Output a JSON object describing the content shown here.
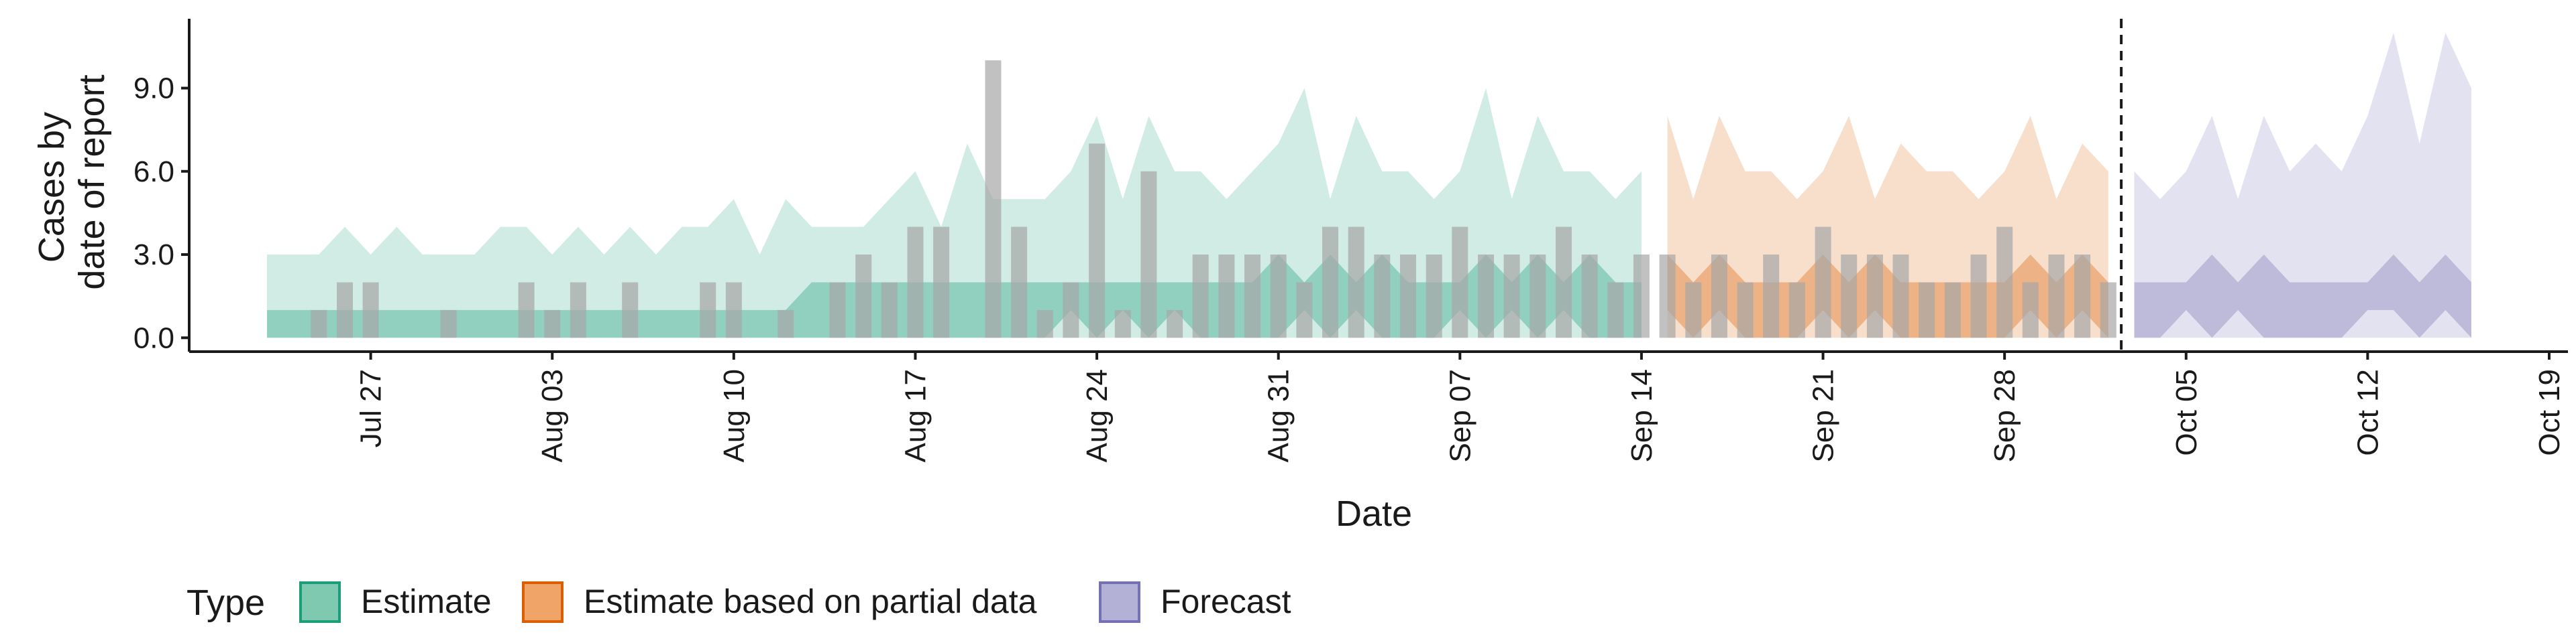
{
  "chart_data": {
    "type": "bar",
    "title": "",
    "xlabel": "Date",
    "ylabel_lines": [
      "Cases by",
      "date of report"
    ],
    "ylim": [
      -0.5,
      11.5
    ],
    "y_ticks": [
      0.0,
      3.0,
      6.0,
      9.0
    ],
    "y_tick_labels": [
      "0.0",
      "3.0",
      "6.0",
      "9.0"
    ],
    "x_start": "2020-07-20",
    "x_end": "2020-10-19",
    "x_tick_labels": [
      "Jul 27",
      "Aug 03",
      "Aug 10",
      "Aug 17",
      "Aug 24",
      "Aug 31",
      "Sep 07",
      "Sep 14",
      "Sep 21",
      "Sep 28",
      "Oct 05",
      "Oct 12",
      "Oct 19"
    ],
    "x_tick_dates": [
      "2020-07-27",
      "2020-08-03",
      "2020-08-10",
      "2020-08-17",
      "2020-08-24",
      "2020-08-31",
      "2020-09-07",
      "2020-09-14",
      "2020-09-21",
      "2020-09-28",
      "2020-10-05",
      "2020-10-12",
      "2020-10-19"
    ],
    "forecast_date": "2020-10-02",
    "legend_position": "bottom",
    "legend": {
      "title": "Type",
      "items": [
        {
          "label": "Estimate",
          "fill": "#7fc9b0",
          "border": "#1b9e77"
        },
        {
          "label": "Estimate based on partial data",
          "fill": "#f0a468",
          "border": "#d95f02"
        },
        {
          "label": "Forecast",
          "fill": "#b3b1d6",
          "border": "#7570b3"
        }
      ]
    },
    "bar_color": "#a6a6a6",
    "reported_cases": {
      "dates": [
        "2020-07-25",
        "2020-07-26",
        "2020-07-27",
        "2020-07-28",
        "2020-07-29",
        "2020-07-30",
        "2020-07-31",
        "2020-08-01",
        "2020-08-02",
        "2020-08-03",
        "2020-08-04",
        "2020-08-05",
        "2020-08-06",
        "2020-08-07",
        "2020-08-08",
        "2020-08-09",
        "2020-08-10",
        "2020-08-11",
        "2020-08-12",
        "2020-08-13",
        "2020-08-14",
        "2020-08-15",
        "2020-08-16",
        "2020-08-17",
        "2020-08-18",
        "2020-08-19",
        "2020-08-20",
        "2020-08-21",
        "2020-08-22",
        "2020-08-23",
        "2020-08-24",
        "2020-08-25",
        "2020-08-26",
        "2020-08-27",
        "2020-08-28",
        "2020-08-29",
        "2020-08-30",
        "2020-08-31",
        "2020-09-01",
        "2020-09-02",
        "2020-09-03",
        "2020-09-04",
        "2020-09-05",
        "2020-09-06",
        "2020-09-07",
        "2020-09-08",
        "2020-09-09",
        "2020-09-10",
        "2020-09-11",
        "2020-09-12",
        "2020-09-13",
        "2020-09-14",
        "2020-09-15",
        "2020-09-16",
        "2020-09-17",
        "2020-09-18",
        "2020-09-19",
        "2020-09-20",
        "2020-09-21",
        "2020-09-22",
        "2020-09-23",
        "2020-09-24",
        "2020-09-25",
        "2020-09-26",
        "2020-09-27",
        "2020-09-28",
        "2020-09-29",
        "2020-09-30",
        "2020-10-01",
        "2020-10-02"
      ],
      "values": [
        1,
        2,
        2,
        0,
        0,
        1,
        0,
        0,
        2,
        1,
        2,
        0,
        2,
        0,
        0,
        2,
        2,
        0,
        1,
        0,
        2,
        3,
        2,
        4,
        4,
        0,
        10,
        4,
        1,
        2,
        7,
        1,
        6,
        1,
        3,
        3,
        3,
        3,
        2,
        4,
        4,
        3,
        3,
        3,
        4,
        3,
        3,
        3,
        4,
        3,
        2,
        3,
        3,
        2,
        3,
        2,
        3,
        2,
        4,
        3,
        3,
        3,
        2,
        2,
        3,
        4,
        2,
        3,
        3,
        2
      ]
    },
    "series": [
      {
        "name": "Estimate",
        "color": "#1b9e77",
        "dates": [
          "2020-07-23",
          "2020-07-24",
          "2020-07-25",
          "2020-07-26",
          "2020-07-27",
          "2020-07-28",
          "2020-07-29",
          "2020-07-30",
          "2020-07-31",
          "2020-08-01",
          "2020-08-02",
          "2020-08-03",
          "2020-08-04",
          "2020-08-05",
          "2020-08-06",
          "2020-08-07",
          "2020-08-08",
          "2020-08-09",
          "2020-08-10",
          "2020-08-11",
          "2020-08-12",
          "2020-08-13",
          "2020-08-14",
          "2020-08-15",
          "2020-08-16",
          "2020-08-17",
          "2020-08-18",
          "2020-08-19",
          "2020-08-20",
          "2020-08-21",
          "2020-08-22",
          "2020-08-23",
          "2020-08-24",
          "2020-08-25",
          "2020-08-26",
          "2020-08-27",
          "2020-08-28",
          "2020-08-29",
          "2020-08-30",
          "2020-08-31",
          "2020-09-01",
          "2020-09-02",
          "2020-09-03",
          "2020-09-04",
          "2020-09-05",
          "2020-09-06",
          "2020-09-07",
          "2020-09-08",
          "2020-09-09",
          "2020-09-10",
          "2020-09-11",
          "2020-09-12",
          "2020-09-13",
          "2020-09-14"
        ],
        "lower_90": [
          0,
          0,
          0,
          0,
          0,
          0,
          0,
          0,
          0,
          0,
          0,
          0,
          0,
          0,
          0,
          0,
          0,
          0,
          0,
          0,
          0,
          0,
          0,
          0,
          0,
          0,
          0,
          0,
          0,
          0,
          0,
          0,
          0,
          0,
          0,
          0,
          0,
          0,
          0,
          0,
          0,
          0,
          0,
          0,
          0,
          0,
          0,
          0,
          0,
          0,
          0,
          0,
          0,
          0
        ],
        "upper_90": [
          3,
          3,
          3,
          4,
          3,
          4,
          3,
          3,
          3,
          4,
          4,
          3,
          4,
          3,
          4,
          3,
          4,
          4,
          5,
          3,
          5,
          4,
          4,
          4,
          5,
          6,
          4,
          7,
          5,
          5,
          5,
          6,
          8,
          5,
          8,
          6,
          6,
          5,
          6,
          7,
          9,
          5,
          8,
          6,
          6,
          5,
          6,
          9,
          5,
          8,
          6,
          6,
          5,
          6
        ],
        "lower_50": [
          0,
          0,
          0,
          0,
          0,
          0,
          0,
          0,
          0,
          0,
          0,
          0,
          0,
          0,
          0,
          0,
          0,
          0,
          0,
          0,
          0,
          0,
          0,
          0,
          0,
          0,
          0,
          0,
          0,
          0,
          0,
          1,
          0,
          1,
          0,
          1,
          0,
          0,
          0,
          0,
          1,
          0,
          1,
          0,
          0,
          0,
          1,
          0,
          1,
          0,
          1,
          0,
          0,
          0
        ],
        "upper_50": [
          1,
          1,
          1,
          1,
          1,
          1,
          1,
          1,
          1,
          1,
          1,
          1,
          1,
          1,
          1,
          1,
          1,
          1,
          1,
          1,
          1,
          2,
          2,
          2,
          2,
          2,
          2,
          2,
          2,
          2,
          2,
          2,
          2,
          2,
          2,
          2,
          2,
          2,
          2,
          3,
          2,
          3,
          2,
          3,
          2,
          2,
          2,
          3,
          2,
          3,
          2,
          3,
          2,
          2
        ]
      },
      {
        "name": "Estimate based on partial data",
        "color": "#d95f02",
        "dates": [
          "2020-09-15",
          "2020-09-16",
          "2020-09-17",
          "2020-09-18",
          "2020-09-19",
          "2020-09-20",
          "2020-09-21",
          "2020-09-22",
          "2020-09-23",
          "2020-09-24",
          "2020-09-25",
          "2020-09-26",
          "2020-09-27",
          "2020-09-28",
          "2020-09-29",
          "2020-09-30",
          "2020-10-01",
          "2020-10-02"
        ],
        "lower_90": [
          0,
          0,
          0,
          0,
          0,
          0,
          0,
          0,
          0,
          0,
          0,
          0,
          0,
          0,
          0,
          0,
          0,
          0
        ],
        "upper_90": [
          8,
          5,
          8,
          6,
          6,
          5,
          6,
          8,
          5,
          7,
          6,
          6,
          5,
          6,
          8,
          5,
          7,
          6
        ],
        "lower_50": [
          1,
          0,
          1,
          0,
          0,
          0,
          1,
          0,
          1,
          0,
          0,
          0,
          0,
          0,
          1,
          0,
          1,
          0
        ],
        "upper_50": [
          3,
          2,
          3,
          2,
          2,
          2,
          3,
          2,
          3,
          2,
          2,
          2,
          2,
          2,
          3,
          2,
          3,
          2
        ]
      },
      {
        "name": "Forecast",
        "color": "#7570b3",
        "dates": [
          "2020-10-03",
          "2020-10-04",
          "2020-10-05",
          "2020-10-06",
          "2020-10-07",
          "2020-10-08",
          "2020-10-09",
          "2020-10-10",
          "2020-10-11",
          "2020-10-12",
          "2020-10-13",
          "2020-10-14",
          "2020-10-15",
          "2020-10-16"
        ],
        "lower_90": [
          0,
          0,
          0,
          0,
          0,
          0,
          0,
          0,
          0,
          0,
          0,
          0,
          0,
          0
        ],
        "upper_90": [
          6,
          5,
          6,
          8,
          5,
          8,
          6,
          7,
          6,
          8,
          11,
          7,
          11,
          9
        ],
        "lower_50": [
          0,
          0,
          1,
          0,
          1,
          0,
          0,
          0,
          0,
          1,
          1,
          0,
          1,
          0
        ],
        "upper_50": [
          2,
          2,
          2,
          3,
          2,
          3,
          2,
          2,
          2,
          2,
          3,
          2,
          3,
          2
        ]
      }
    ]
  }
}
